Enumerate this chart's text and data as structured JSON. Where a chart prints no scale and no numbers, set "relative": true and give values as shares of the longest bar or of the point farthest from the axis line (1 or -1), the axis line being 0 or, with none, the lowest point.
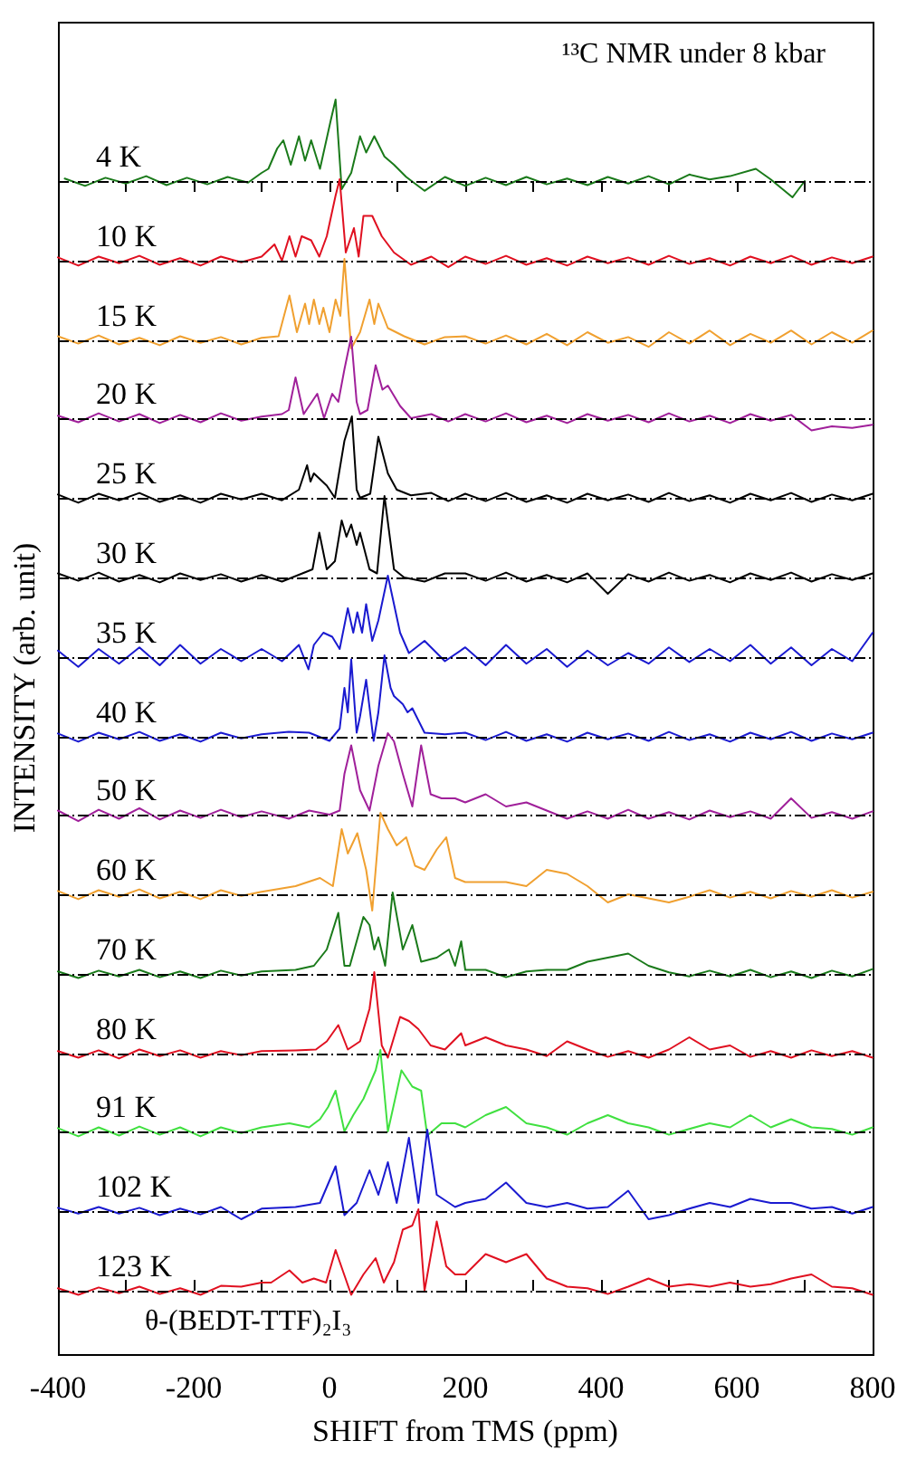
{
  "chart_data": [
    {
      "type": "line",
      "relative": true,
      "marker": "none",
      "xlim": [
        -400,
        800
      ],
      "tick_labels": false,
      "xticks": [
        {
          "value": -400,
          "label": null
        },
        {
          "value": -300,
          "label": null
        },
        {
          "value": -200,
          "label": null
        },
        {
          "value": -100,
          "label": null
        },
        {
          "value": 0,
          "label": null
        },
        {
          "value": 100,
          "label": null
        },
        {
          "value": 200,
          "label": null
        },
        {
          "value": 300,
          "label": null
        },
        {
          "value": 400,
          "label": null
        },
        {
          "value": 500,
          "label": null
        },
        {
          "value": 600,
          "label": null
        },
        {
          "value": 700,
          "label": null
        },
        {
          "value": 800,
          "label": null
        }
      ],
      "annotations": [
        "¹³C NMR under 8 kbar"
      ],
      "ref_lines": [
        {
          "axis": "y",
          "value": 0,
          "line_style": "dashed",
          "color": "#000000"
        }
      ],
      "x": [
        -390,
        -360,
        -330,
        -300,
        -270,
        -240,
        -210,
        -180,
        -150,
        -120,
        -100,
        -90,
        -77,
        -68,
        -57,
        -45,
        -36,
        -27,
        -14,
        2,
        9,
        18,
        32,
        45,
        54,
        66,
        81,
        95,
        113,
        140,
        170,
        200,
        230,
        260,
        290,
        320,
        350,
        380,
        410,
        440,
        470,
        500,
        530,
        560,
        590,
        628,
        650,
        682,
        700
      ],
      "series": [
        {
          "name": "4 K",
          "color": "#1a7a1a",
          "values": [
            0.03,
            -0.06,
            0.04,
            -0.03,
            0.06,
            -0.05,
            0.04,
            -0.04,
            0.05,
            -0.02,
            0.1,
            0.15,
            0.4,
            0.5,
            0.2,
            0.55,
            0.25,
            0.5,
            0.15,
            0.75,
            1,
            -0.1,
            0.1,
            0.55,
            0.35,
            0.55,
            0.3,
            0.2,
            0.05,
            -0.12,
            0.05,
            -0.06,
            0.04,
            -0.05,
            0.05,
            -0.04,
            0.03,
            -0.05,
            0.05,
            -0.03,
            0.06,
            -0.04,
            0.08,
            0.02,
            0.06,
            0.15,
            0.02,
            -0.2,
            0
          ]
        }
      ]
    },
    {
      "type": "line",
      "relative": true,
      "marker": "none",
      "xlim": [
        -400,
        800
      ],
      "tick_labels": false,
      "ref_lines": [
        {
          "axis": "y",
          "value": 0,
          "line_style": "dashed",
          "color": "#000000"
        }
      ],
      "x": [
        -400,
        -370,
        -340,
        -310,
        -280,
        -250,
        -220,
        -190,
        -160,
        -130,
        -100,
        -81,
        -70,
        -59,
        -50,
        -41,
        -27,
        -15,
        -4,
        9,
        15,
        24,
        36,
        43,
        50,
        63,
        77,
        95,
        120,
        150,
        175,
        200,
        230,
        260,
        290,
        320,
        350,
        380,
        410,
        440,
        470,
        500,
        530,
        560,
        590,
        620,
        650,
        680,
        710,
        740,
        770,
        800
      ],
      "series": [
        {
          "name": "10 K",
          "color": "#e01020",
          "values": [
            0.04,
            -0.06,
            0.05,
            -0.03,
            0.06,
            -0.05,
            0.03,
            -0.06,
            0.05,
            -0.02,
            0.05,
            0.2,
            0,
            0.3,
            0.05,
            0.3,
            0.25,
            0.05,
            0.3,
            0.8,
            1,
            0.1,
            0.4,
            0.05,
            0.55,
            0.55,
            0.3,
            0.1,
            -0.05,
            0.05,
            -0.08,
            0.05,
            -0.04,
            0.06,
            -0.05,
            0.03,
            -0.06,
            0.05,
            -0.03,
            0.04,
            -0.05,
            0.06,
            -0.04,
            0.03,
            -0.06,
            0.05,
            -0.03,
            0.06,
            -0.05,
            0.04,
            -0.03,
            0.05
          ]
        }
      ]
    },
    {
      "type": "line",
      "relative": true,
      "marker": "none",
      "xlim": [
        -400,
        800
      ],
      "tick_labels": false,
      "ref_lines": [
        {
          "axis": "y",
          "value": 0,
          "line_style": "dashed",
          "color": "#000000"
        }
      ],
      "x": [
        -400,
        -370,
        -340,
        -310,
        -280,
        -250,
        -220,
        -190,
        -160,
        -130,
        -100,
        -75,
        -59,
        -48,
        -36,
        -30,
        -23,
        -15,
        -9,
        0,
        9,
        16,
        22,
        32,
        45,
        59,
        66,
        72,
        86,
        110,
        140,
        170,
        200,
        230,
        260,
        290,
        320,
        350,
        380,
        410,
        440,
        470,
        500,
        530,
        560,
        590,
        620,
        650,
        680,
        710,
        740,
        770,
        800
      ],
      "series": [
        {
          "name": "15 K",
          "color": "#f0a030",
          "values": [
            0.05,
            -0.04,
            0.06,
            -0.05,
            0.03,
            -0.06,
            0.05,
            -0.03,
            0.04,
            -0.05,
            0.03,
            0.05,
            0.55,
            0.1,
            0.45,
            0.2,
            0.5,
            0.2,
            0.4,
            0.1,
            0.5,
            0.3,
            1,
            -0.1,
            0.1,
            0.5,
            0.2,
            0.45,
            0.15,
            0.05,
            -0.05,
            0.04,
            0.05,
            -0.04,
            0.06,
            -0.05,
            0.08,
            -0.06,
            0.1,
            -0.03,
            0.04,
            -0.08,
            0.1,
            -0.04,
            0.12,
            -0.06,
            0.08,
            -0.03,
            0.12,
            -0.05,
            0.1,
            -0.03,
            0.12
          ]
        }
      ]
    },
    {
      "type": "line",
      "relative": true,
      "marker": "none",
      "xlim": [
        -400,
        800
      ],
      "tick_labels": false,
      "ref_lines": [
        {
          "axis": "y",
          "value": 0,
          "line_style": "dashed",
          "color": "#000000"
        }
      ],
      "x": [
        -400,
        -370,
        -340,
        -310,
        -280,
        -250,
        -220,
        -190,
        -160,
        -130,
        -100,
        -70,
        -60,
        -50,
        -38,
        -18,
        -8,
        4,
        13,
        22,
        32,
        40,
        45,
        56,
        68,
        78,
        86,
        104,
        120,
        150,
        175,
        200,
        230,
        260,
        290,
        320,
        350,
        380,
        410,
        440,
        470,
        500,
        530,
        560,
        590,
        620,
        650,
        680,
        710,
        740,
        770,
        800
      ],
      "series": [
        {
          "name": "20 K",
          "color": "#a0209a",
          "values": [
            0.03,
            -0.05,
            0.06,
            -0.04,
            0.05,
            -0.06,
            0.04,
            -0.05,
            0.06,
            -0.03,
            0.02,
            0.05,
            0.1,
            0.5,
            0.05,
            0.3,
            0,
            0.3,
            0.2,
            0.6,
            1,
            0.2,
            0.05,
            0.1,
            0.65,
            0.35,
            0.4,
            0.15,
            0,
            0.05,
            -0.04,
            0.05,
            -0.04,
            0.06,
            -0.05,
            0.03,
            -0.06,
            0.05,
            -0.03,
            0.04,
            -0.05,
            0.06,
            -0.04,
            0.03,
            -0.06,
            0.05,
            -0.03,
            0.04,
            -0.15,
            -0.1,
            -0.12,
            -0.08
          ]
        }
      ]
    },
    {
      "type": "line",
      "relative": true,
      "marker": "none",
      "xlim": [
        -400,
        800
      ],
      "tick_labels": false,
      "ref_lines": [
        {
          "axis": "y",
          "value": 0,
          "line_style": "dashed",
          "color": "#000000"
        }
      ],
      "x": [
        -400,
        -370,
        -340,
        -310,
        -280,
        -250,
        -220,
        -190,
        -160,
        -130,
        -100,
        -70,
        -45,
        -33,
        -28,
        -23,
        -4,
        8,
        22,
        33,
        40,
        45,
        60,
        72,
        86,
        99,
        120,
        150,
        175,
        200,
        230,
        260,
        290,
        320,
        350,
        380,
        410,
        440,
        470,
        500,
        530,
        560,
        590,
        620,
        650,
        680,
        710,
        740,
        770,
        800
      ],
      "series": [
        {
          "name": "25 K",
          "color": "#000000",
          "values": [
            0.04,
            -0.06,
            0.05,
            -0.03,
            0.06,
            -0.05,
            0.03,
            -0.06,
            0.05,
            -0.02,
            0.05,
            -0.03,
            0.1,
            0.4,
            0.2,
            0.3,
            0.15,
            0,
            0.7,
            1,
            0.1,
            0,
            0.05,
            0.75,
            0.3,
            0.1,
            0.03,
            0.06,
            -0.04,
            0.05,
            -0.04,
            0.06,
            -0.05,
            0.03,
            -0.06,
            0.05,
            -0.03,
            0.04,
            -0.05,
            0.06,
            -0.04,
            0.03,
            -0.06,
            0.05,
            -0.03,
            0.06,
            -0.05,
            0.04,
            -0.03,
            0.05
          ]
        }
      ]
    },
    {
      "type": "line",
      "relative": true,
      "marker": "none",
      "xlim": [
        -400,
        800
      ],
      "tick_labels": false,
      "ref_lines": [
        {
          "axis": "y",
          "value": 0,
          "line_style": "dashed",
          "color": "#000000"
        }
      ],
      "x": [
        -400,
        -370,
        -340,
        -310,
        -280,
        -250,
        -220,
        -190,
        -160,
        -130,
        -100,
        -70,
        -40,
        -25,
        -15,
        -4,
        8,
        18,
        25,
        32,
        40,
        45,
        59,
        70,
        81,
        95,
        110,
        140,
        170,
        200,
        230,
        260,
        290,
        320,
        350,
        380,
        410,
        440,
        470,
        500,
        530,
        560,
        590,
        620,
        650,
        680,
        710,
        740,
        770,
        800
      ],
      "series": [
        {
          "name": "30 K",
          "color": "#000000",
          "values": [
            0.05,
            -0.04,
            0.06,
            -0.05,
            0.03,
            -0.06,
            0.05,
            -0.03,
            0.04,
            -0.05,
            0.03,
            -0.05,
            0.05,
            0.1,
            0.55,
            0.1,
            0.2,
            0.7,
            0.5,
            0.65,
            0.4,
            0.55,
            0.1,
            0.05,
            1,
            0.1,
            0,
            -0.05,
            0.05,
            0.05,
            -0.04,
            0.06,
            -0.05,
            0.03,
            -0.06,
            0.05,
            -0.2,
            0.04,
            -0.05,
            0.06,
            -0.04,
            0.03,
            -0.06,
            0.05,
            -0.03,
            0.06,
            -0.05,
            0.04,
            -0.03,
            0.05
          ]
        }
      ]
    },
    {
      "type": "line",
      "relative": true,
      "marker": "none",
      "xlim": [
        -400,
        800
      ],
      "tick_labels": false,
      "ref_lines": [
        {
          "axis": "y",
          "value": 0,
          "line_style": "dashed",
          "color": "#000000"
        }
      ],
      "x": [
        -400,
        -370,
        -340,
        -310,
        -280,
        -250,
        -220,
        -190,
        -160,
        -130,
        -100,
        -70,
        -45,
        -31,
        -23,
        -9,
        4,
        15,
        27,
        35,
        41,
        48,
        54,
        63,
        72,
        86,
        104,
        117,
        140,
        170,
        200,
        230,
        260,
        290,
        320,
        350,
        380,
        410,
        440,
        470,
        500,
        530,
        560,
        590,
        620,
        650,
        680,
        710,
        740,
        770,
        800
      ],
      "series": [
        {
          "name": "35 K",
          "color": "#1a1ad0",
          "values": [
            0.08,
            -0.12,
            0.1,
            -0.08,
            0.12,
            -0.1,
            0.15,
            -0.08,
            0.1,
            -0.05,
            0.1,
            -0.05,
            0.15,
            -0.15,
            0.15,
            0.3,
            0.25,
            0.1,
            0.6,
            0.3,
            0.55,
            0.3,
            0.65,
            0.2,
            0.45,
            1,
            0.3,
            0.05,
            0.2,
            -0.05,
            0.12,
            -0.1,
            0.15,
            -0.08,
            0.1,
            -0.12,
            0.08,
            -0.1,
            0.05,
            -0.08,
            0.12,
            -0.06,
            0.1,
            -0.05,
            0.15,
            -0.08,
            0.12,
            -0.1,
            0.1,
            -0.05,
            0.3
          ]
        }
      ]
    },
    {
      "type": "line",
      "relative": true,
      "marker": "none",
      "xlim": [
        -400,
        800
      ],
      "tick_labels": false,
      "ref_lines": [
        {
          "axis": "y",
          "value": 0,
          "line_style": "dashed",
          "color": "#000000"
        }
      ],
      "x": [
        -400,
        -370,
        -340,
        -310,
        -280,
        -250,
        -220,
        -190,
        -160,
        -130,
        -100,
        -60,
        -30,
        0,
        15,
        22,
        27,
        32,
        40,
        45,
        54,
        65,
        72,
        81,
        90,
        95,
        108,
        115,
        122,
        140,
        170,
        200,
        230,
        260,
        290,
        320,
        350,
        380,
        410,
        440,
        470,
        500,
        530,
        560,
        590,
        620,
        650,
        680,
        710,
        740,
        770,
        800
      ],
      "ylabel": "INTENSITY (arb. unit)",
      "series": [
        {
          "name": "40 K",
          "color": "#1a1ad0",
          "values": [
            0.04,
            -0.06,
            0.05,
            -0.03,
            0.06,
            -0.05,
            0.03,
            -0.06,
            0.05,
            -0.02,
            0.03,
            0.06,
            0.05,
            -0.05,
            0.1,
            0.6,
            0.3,
            0.95,
            0.05,
            0.25,
            0.7,
            -0.05,
            0.3,
            1,
            0.6,
            0.5,
            0.4,
            0.3,
            0.35,
            0.05,
            0.03,
            0.05,
            -0.04,
            0.06,
            -0.05,
            0.03,
            -0.06,
            0.05,
            -0.03,
            0.04,
            -0.05,
            0.06,
            -0.04,
            0.03,
            -0.06,
            0.05,
            -0.03,
            0.06,
            -0.05,
            0.04,
            -0.03,
            0.05
          ]
        }
      ]
    },
    {
      "type": "line",
      "relative": true,
      "marker": "none",
      "xlim": [
        -400,
        800
      ],
      "tick_labels": false,
      "ref_lines": [
        {
          "axis": "y",
          "value": 0,
          "line_style": "dashed",
          "color": "#000000"
        }
      ],
      "x": [
        -400,
        -370,
        -340,
        -310,
        -280,
        -250,
        -220,
        -190,
        -160,
        -130,
        -100,
        -60,
        -30,
        0,
        15,
        22,
        32,
        45,
        59,
        72,
        86,
        95,
        108,
        122,
        135,
        149,
        165,
        185,
        200,
        230,
        260,
        290,
        320,
        350,
        380,
        410,
        440,
        470,
        500,
        530,
        560,
        590,
        620,
        650,
        680,
        710,
        740,
        770,
        800
      ],
      "series": [
        {
          "name": "50 K",
          "color": "#a0209a",
          "values": [
            0.05,
            -0.08,
            0.06,
            -0.05,
            0.08,
            -0.06,
            0.05,
            -0.04,
            0.06,
            -0.03,
            0.04,
            -0.05,
            0.05,
            0,
            0.05,
            0.5,
            0.85,
            0.3,
            0.05,
            0.6,
            1,
            0.9,
            0.5,
            0.1,
            0.85,
            0.25,
            0.2,
            0.2,
            0.15,
            0.25,
            0.1,
            0.15,
            0.05,
            -0.05,
            0.04,
            -0.05,
            0.06,
            -0.05,
            0.03,
            -0.06,
            0.05,
            -0.03,
            0.04,
            -0.05,
            0.2,
            -0.04,
            0.03,
            -0.05,
            0.04
          ]
        }
      ]
    },
    {
      "type": "line",
      "relative": true,
      "marker": "none",
      "xlim": [
        -400,
        800
      ],
      "tick_labels": false,
      "ref_lines": [
        {
          "axis": "y",
          "value": 0,
          "line_style": "dashed",
          "color": "#000000"
        }
      ],
      "x": [
        -400,
        -370,
        -340,
        -310,
        -280,
        -250,
        -220,
        -190,
        -160,
        -130,
        -100,
        -50,
        -14,
        5,
        18,
        27,
        41,
        54,
        63,
        75,
        86,
        99,
        113,
        126,
        140,
        158,
        172,
        185,
        200,
        230,
        260,
        290,
        320,
        350,
        380,
        410,
        440,
        470,
        500,
        530,
        560,
        590,
        620,
        650,
        680,
        710,
        740,
        770,
        800
      ],
      "series": [
        {
          "name": "60 K",
          "color": "#f0a030",
          "values": [
            0.04,
            -0.06,
            0.05,
            -0.03,
            0.06,
            -0.05,
            0.03,
            -0.06,
            0.05,
            -0.02,
            0.03,
            0.1,
            0.2,
            0.1,
            0.8,
            0.5,
            0.75,
            0.3,
            -0.2,
            1,
            0.8,
            0.6,
            0.7,
            0.35,
            0.3,
            0.55,
            0.7,
            0.2,
            0.15,
            0.15,
            0.15,
            0.1,
            0.3,
            0.25,
            0.1,
            -0.1,
            0,
            -0.05,
            -0.1,
            -0.03,
            0.05,
            -0.04,
            0.03,
            -0.05,
            0.04,
            -0.03,
            0.05,
            -0.04,
            0.03
          ]
        }
      ]
    },
    {
      "type": "line",
      "relative": true,
      "marker": "none",
      "xlim": [
        -400,
        800
      ],
      "tick_labels": false,
      "ref_lines": [
        {
          "axis": "y",
          "value": 0,
          "line_style": "dashed",
          "color": "#000000"
        }
      ],
      "x": [
        -400,
        -370,
        -340,
        -310,
        -280,
        -250,
        -220,
        -190,
        -160,
        -130,
        -100,
        -50,
        -23,
        -4,
        13,
        22,
        30,
        50,
        59,
        66,
        72,
        82,
        93,
        108,
        122,
        135,
        158,
        176,
        185,
        194,
        200,
        230,
        260,
        290,
        320,
        350,
        380,
        410,
        440,
        470,
        500,
        530,
        560,
        590,
        620,
        650,
        680,
        710,
        740,
        770,
        800
      ],
      "series": [
        {
          "name": "70 K",
          "color": "#1a7a1a",
          "values": [
            0.03,
            -0.05,
            0.04,
            -0.03,
            0.05,
            -0.04,
            0.03,
            -0.05,
            0.04,
            -0.02,
            0.03,
            0.05,
            0.1,
            0.3,
            0.75,
            0.1,
            0.1,
            0.7,
            0.6,
            0.3,
            0.45,
            0.1,
            1,
            0.3,
            0.6,
            0.15,
            0.2,
            0.3,
            0.1,
            0.4,
            0.05,
            0.05,
            -0.04,
            0.03,
            0.05,
            0.05,
            0.15,
            0.2,
            0.25,
            0.1,
            0.02,
            -0.03,
            0.04,
            -0.03,
            0.05,
            -0.04,
            0.03,
            -0.05,
            0.04,
            -0.03,
            0.06
          ]
        }
      ]
    },
    {
      "type": "line",
      "relative": true,
      "marker": "none",
      "xlim": [
        -400,
        800
      ],
      "tick_labels": false,
      "ref_lines": [
        {
          "axis": "y",
          "value": 0,
          "line_style": "dashed",
          "color": "#000000"
        }
      ],
      "x": [
        -400,
        -370,
        -340,
        -310,
        -280,
        -250,
        -220,
        -190,
        -160,
        -130,
        -100,
        -50,
        -20,
        -4,
        13,
        27,
        45,
        59,
        66,
        77,
        86,
        104,
        117,
        131,
        149,
        170,
        194,
        200,
        230,
        260,
        290,
        320,
        350,
        380,
        410,
        440,
        470,
        500,
        530,
        560,
        590,
        620,
        650,
        680,
        710,
        740,
        770,
        800
      ],
      "series": [
        {
          "name": "80 K",
          "color": "#e01020",
          "values": [
            0.03,
            -0.05,
            0.04,
            -0.06,
            0.05,
            -0.03,
            0.04,
            -0.05,
            0.03,
            -0.02,
            0.03,
            0.04,
            0.05,
            0.15,
            0.35,
            0.05,
            0.15,
            0.55,
            1,
            0.1,
            -0.05,
            0.45,
            0.4,
            0.3,
            0.1,
            0.05,
            0.25,
            0.1,
            0.2,
            0.1,
            0.05,
            -0.03,
            0.15,
            0.05,
            -0.04,
            0.03,
            -0.05,
            0.05,
            0.2,
            0.05,
            0.1,
            -0.04,
            0.03,
            -0.05,
            0.04,
            -0.03,
            0.03,
            -0.05
          ]
        }
      ]
    },
    {
      "type": "line",
      "relative": true,
      "marker": "none",
      "xlim": [
        -400,
        800
      ],
      "tick_labels": false,
      "ref_lines": [
        {
          "axis": "y",
          "value": 0,
          "line_style": "dashed",
          "color": "#000000"
        }
      ],
      "x": [
        -400,
        -370,
        -340,
        -310,
        -280,
        -250,
        -220,
        -190,
        -160,
        -130,
        -100,
        -59,
        -30,
        -14,
        -2,
        9,
        22,
        35,
        50,
        68,
        75,
        86,
        106,
        122,
        135,
        144,
        165,
        185,
        200,
        230,
        260,
        290,
        320,
        350,
        380,
        410,
        440,
        470,
        500,
        530,
        560,
        590,
        620,
        650,
        680,
        710,
        740,
        770,
        800
      ],
      "series": [
        {
          "name": "91 K",
          "color": "#40e040",
          "values": [
            0.04,
            -0.06,
            0.05,
            -0.05,
            0.06,
            -0.04,
            0.05,
            -0.06,
            0.05,
            -0.02,
            0.05,
            0.1,
            0.05,
            0.15,
            0.3,
            0.5,
            0,
            0.2,
            0.4,
            0.75,
            1,
            0,
            0.75,
            0.55,
            0.5,
            -0.05,
            0.1,
            0.1,
            0.05,
            0.2,
            0.3,
            0.1,
            0.05,
            -0.04,
            0.1,
            0.2,
            0.1,
            0.05,
            -0.04,
            0.03,
            0.1,
            0.05,
            0.2,
            0.05,
            0.15,
            0.05,
            0.03,
            -0.04,
            0.05
          ]
        }
      ]
    },
    {
      "type": "line",
      "relative": true,
      "marker": "none",
      "xlim": [
        -400,
        800
      ],
      "tick_labels": false,
      "ref_lines": [
        {
          "axis": "y",
          "value": 0,
          "line_style": "dashed",
          "color": "#000000"
        }
      ],
      "x": [
        -400,
        -370,
        -340,
        -310,
        -280,
        -250,
        -220,
        -190,
        -160,
        -130,
        -100,
        -50,
        -14,
        9,
        22,
        40,
        59,
        72,
        86,
        99,
        117,
        131,
        144,
        158,
        185,
        200,
        230,
        260,
        290,
        320,
        350,
        380,
        410,
        440,
        470,
        500,
        530,
        560,
        590,
        620,
        650,
        680,
        710,
        740,
        770,
        800
      ],
      "series": [
        {
          "name": "102 K",
          "color": "#1a1ad0",
          "values": [
            0.04,
            -0.03,
            0.05,
            -0.03,
            0.04,
            -0.05,
            0.03,
            -0.04,
            0.05,
            -0.1,
            0.03,
            0.05,
            0.1,
            0.55,
            -0.05,
            0.1,
            0.5,
            0.2,
            0.6,
            0.1,
            0.9,
            0.1,
            1,
            0.2,
            0.05,
            0.1,
            0.15,
            0.35,
            0.1,
            0.05,
            0.1,
            0.03,
            0.05,
            0.25,
            -0.1,
            -0.05,
            0.03,
            0.1,
            0.05,
            0.15,
            0.1,
            0.1,
            0.03,
            0.05,
            -0.03,
            0.05
          ]
        }
      ]
    },
    {
      "type": "line",
      "relative": true,
      "marker": "none",
      "xlim": [
        -400,
        800
      ],
      "tick_labels": "x",
      "xticks": [
        -400,
        {
          "value": -300,
          "label": null
        },
        -200,
        {
          "value": -100,
          "label": null
        },
        0,
        {
          "value": 100,
          "label": null
        },
        200,
        {
          "value": 300,
          "label": null
        },
        400,
        {
          "value": 500,
          "label": null
        },
        600,
        {
          "value": 700,
          "label": null
        },
        800
      ],
      "xlabel": "SHIFT from TMS (ppm)",
      "annotations": [
        "θ-(BEDT-TTF)₂I₃"
      ],
      "ref_lines": [
        {
          "axis": "y",
          "value": 0,
          "line_style": "dashed",
          "color": "#000000"
        }
      ],
      "x": [
        -400,
        -370,
        -340,
        -310,
        -280,
        -250,
        -220,
        -190,
        -160,
        -130,
        -100,
        -86,
        -59,
        -40,
        -23,
        -5,
        9,
        32,
        50,
        68,
        80,
        95,
        108,
        122,
        131,
        140,
        158,
        172,
        185,
        200,
        230,
        260,
        290,
        320,
        350,
        380,
        410,
        440,
        470,
        500,
        530,
        560,
        590,
        620,
        650,
        680,
        710,
        740,
        770,
        800
      ],
      "series": [
        {
          "name": "123 K",
          "color": "#e01020",
          "values": [
            0.03,
            -0.05,
            0.04,
            -0.03,
            0.05,
            -0.04,
            0.03,
            -0.05,
            0.06,
            0.05,
            0.1,
            0.1,
            0.25,
            0.1,
            0.15,
            0.1,
            0.5,
            -0.05,
            0.2,
            0.4,
            0.1,
            0.35,
            0.75,
            0.8,
            1,
            0,
            0.85,
            0.3,
            0.2,
            0.2,
            0.45,
            0.35,
            0.45,
            0.15,
            0.05,
            0.03,
            -0.04,
            0.05,
            0.15,
            0.05,
            0.08,
            0.05,
            0.1,
            0.05,
            0.08,
            0.15,
            0.2,
            0.05,
            0.03,
            -0.05
          ]
        }
      ]
    }
  ]
}
